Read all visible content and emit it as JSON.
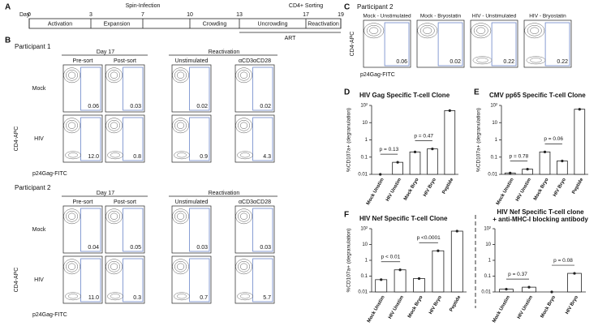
{
  "panel_labels": [
    "A",
    "B",
    "C",
    "D",
    "E",
    "F"
  ],
  "timeline": {
    "day_label": "Day",
    "days": [
      0,
      3,
      7,
      10,
      13,
      17,
      19
    ],
    "events": [
      "Spin-Infection",
      "CD4+ Sorting"
    ],
    "stages": [
      "Activation",
      "Expansion",
      "Crowding",
      "Uncrowding",
      "Reactivation"
    ],
    "art": "ART"
  },
  "flow_b": {
    "y_axis": "CD4-APC",
    "x_axis": "p24Gag-FITC",
    "participants": [
      {
        "name": "Participant 1",
        "day_header": "Day 17",
        "reactivation_header": "Reactivation",
        "columns": [
          "Pre-sort",
          "Post-sort",
          "Unstimulated",
          "αCD3αCD28"
        ],
        "rows": [
          {
            "label": "Mock",
            "gates": [
              "0.06",
              "0.03",
              "0.02",
              "0.02"
            ]
          },
          {
            "label": "HIV",
            "gates": [
              "12.0",
              "0.8",
              "0.9",
              "4.3"
            ]
          }
        ]
      },
      {
        "name": "Participant 2",
        "day_header": "Day 17",
        "reactivation_header": "Reactivation",
        "columns": [
          "Pre-sort",
          "Post-sort",
          "Unstimulated",
          "αCD3αCD28"
        ],
        "rows": [
          {
            "label": "Mock",
            "gates": [
              "0.04",
              "0.05",
              "0.03",
              "0.03"
            ]
          },
          {
            "label": "HIV",
            "gates": [
              "11.0",
              "0.3",
              "0.7",
              "5.7"
            ]
          }
        ]
      }
    ]
  },
  "flow_c": {
    "participant": "Participant 2",
    "y_axis": "CD4-APC",
    "x_axis": "p24Gag-FITC",
    "titles": [
      "Mock - Unstimulated",
      "Mock - Bryostatin",
      "HIV - Unstimulated",
      "HIV - Bryostatin"
    ],
    "gates": [
      "0.06",
      "0.02",
      "0.22",
      "0.22"
    ]
  },
  "charts": [
    {
      "type": "bar",
      "title": "HIV Gag Specific T-cell Clone",
      "y_label": "%CD107a+ (degranulation)",
      "categories": [
        "Mock Unstim",
        "HIV Unstim",
        "Mock Bryo",
        "HIV Bryo",
        "Peptide"
      ],
      "values": [
        0.01,
        0.05,
        0.2,
        0.3,
        50
      ],
      "log": true,
      "ylim": [
        0.01,
        100
      ],
      "yticks": [
        {
          "value": 100,
          "label": "10²"
        },
        10,
        1,
        0.1,
        0.01
      ],
      "annotations": [
        "p = 0.13",
        "p = 0.47"
      ]
    },
    {
      "type": "bar",
      "title": "CMV pp65 Specific T-cell Clone",
      "y_label": "%CD107a+ (degranulation)",
      "categories": [
        "Mock Unstim",
        "HIV Unstim",
        "Mock Bryo",
        "HIV Bryo",
        "Peptide"
      ],
      "values": [
        0.012,
        0.02,
        0.2,
        0.06,
        60
      ],
      "log": true,
      "ylim": [
        0.01,
        100
      ],
      "yticks": [
        {
          "value": 100,
          "label": "10²"
        },
        10,
        1,
        0.1,
        0.01
      ],
      "annotations": [
        "p = 0.78",
        "p = 0.06"
      ]
    },
    {
      "type": "bar",
      "title": "HIV Nef Specific T-cell Clone",
      "y_label": "%CD107a+ (degranulation)",
      "categories": [
        "Mock Unstim",
        "HIV Unstim",
        "Mock Bryo",
        "HIV Bryo",
        "Peptide"
      ],
      "values": [
        0.06,
        0.25,
        0.07,
        4,
        70
      ],
      "log": true,
      "ylim": [
        0.01,
        100
      ],
      "yticks": [
        {
          "value": 100,
          "label": "10²"
        },
        10,
        1,
        0.1,
        0.01
      ],
      "annotations": [
        "p < 0.01",
        "p <0.0001"
      ]
    },
    {
      "type": "bar",
      "title": "HIV Nef Specific T-cell clone",
      "subtitle": "+ anti-MHC-I blocking antibody",
      "categories": [
        "Mock Unstim",
        "HIV Unstim",
        "Mock Bryo",
        "HIV Bryo"
      ],
      "values": [
        0.015,
        0.02,
        0.01,
        0.15
      ],
      "log": true,
      "ylim": [
        0.01,
        100
      ],
      "yticks": [
        {
          "value": 100,
          "label": "10²"
        },
        10,
        1,
        0.1,
        0.01
      ],
      "annotations": [
        "p = 0.37",
        "p = 0.08"
      ]
    }
  ]
}
